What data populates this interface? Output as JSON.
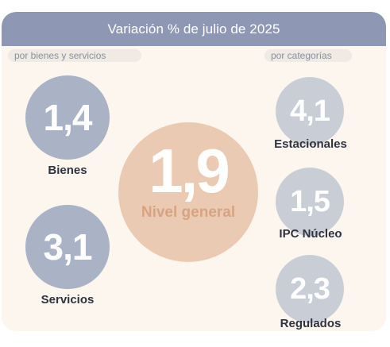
{
  "header": {
    "title": "Variación % de julio de 2025"
  },
  "tags": {
    "left": "por bienes y servicios",
    "right": "por categorías"
  },
  "general": {
    "value": "1,9",
    "label": "Nivel general"
  },
  "bienes": {
    "value": "1,4",
    "label": "Bienes"
  },
  "servicios": {
    "value": "3,1",
    "label": "Servicios"
  },
  "estacionales": {
    "value": "4,1",
    "label": "Estacionales"
  },
  "nucleo": {
    "value": "1,5",
    "label": "IPC Núcleo"
  },
  "regulados": {
    "value": "2,3",
    "label": "Regulados"
  },
  "colors": {
    "header": "#8e98b4",
    "goods_services": "#aab2c6",
    "categories": "#c9cdd6",
    "general": "#ebcab3",
    "background": "#fdf6ee"
  }
}
